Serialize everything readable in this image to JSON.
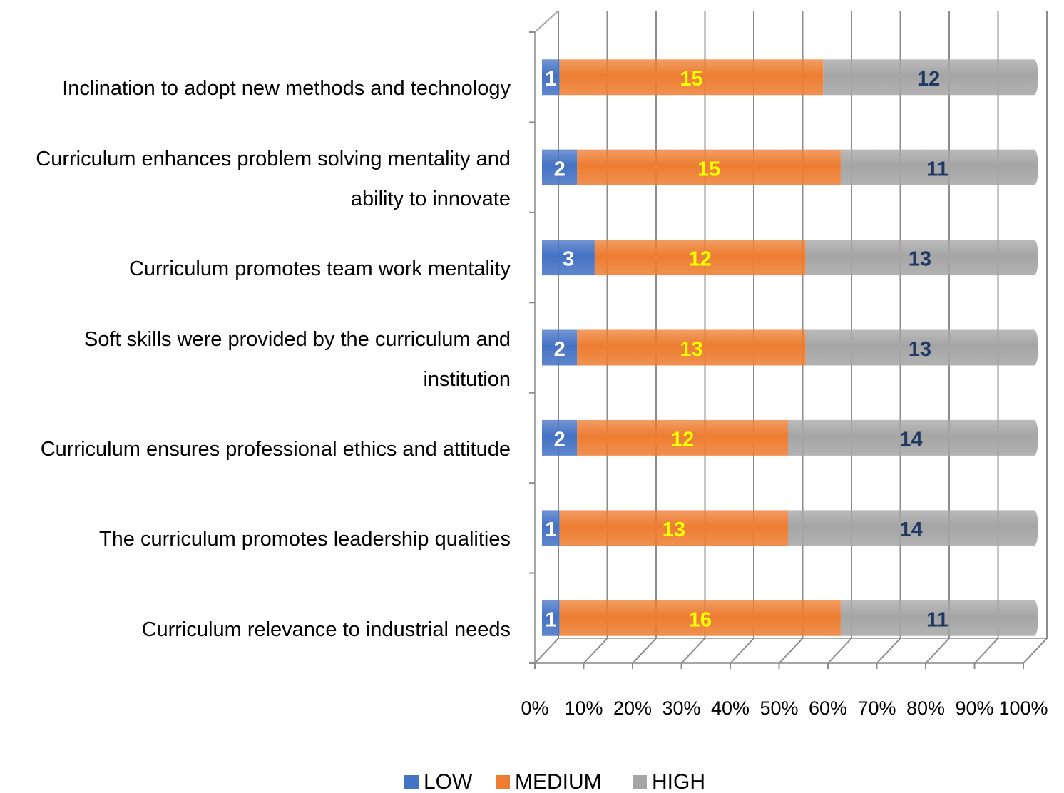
{
  "chart_data": {
    "type": "bar",
    "orientation": "horizontal",
    "percent_stacked": true,
    "categories": [
      "Inclination to adopt new methods and technology",
      "Curriculum enhances problem solving mentality and ability to innovate",
      "Curriculum promotes team work mentality",
      "Soft skills were provided by the curriculum and institution",
      "Curriculum ensures professional ethics and attitude",
      "The curriculum promotes leadership qualities",
      "Curriculum relevance to industrial needs"
    ],
    "series": [
      {
        "name": "LOW",
        "color": "#4472c4",
        "label_color": "#ffffff",
        "values": [
          1,
          2,
          3,
          2,
          2,
          1,
          1
        ]
      },
      {
        "name": "MEDIUM",
        "color": "#ed7d31",
        "label_color": "#ffff00",
        "values": [
          15,
          15,
          12,
          13,
          12,
          13,
          16
        ]
      },
      {
        "name": "HIGH",
        "color": "#a5a5a5",
        "label_color": "#1f3864",
        "values": [
          12,
          11,
          13,
          13,
          14,
          14,
          11
        ]
      }
    ],
    "xlim": [
      0,
      100
    ],
    "xticks": [
      {
        "value": 0,
        "label": "0%"
      },
      {
        "value": 10,
        "label": "10%"
      },
      {
        "value": 20,
        "label": "20%"
      },
      {
        "value": 30,
        "label": "30%"
      },
      {
        "value": 40,
        "label": "40%"
      },
      {
        "value": 50,
        "label": "50%"
      },
      {
        "value": 60,
        "label": "60%"
      },
      {
        "value": 70,
        "label": "70%"
      },
      {
        "value": 80,
        "label": "80%"
      },
      {
        "value": 90,
        "label": "90%"
      },
      {
        "value": 100,
        "label": "100%"
      }
    ],
    "grid": true,
    "legend": "bottom"
  }
}
